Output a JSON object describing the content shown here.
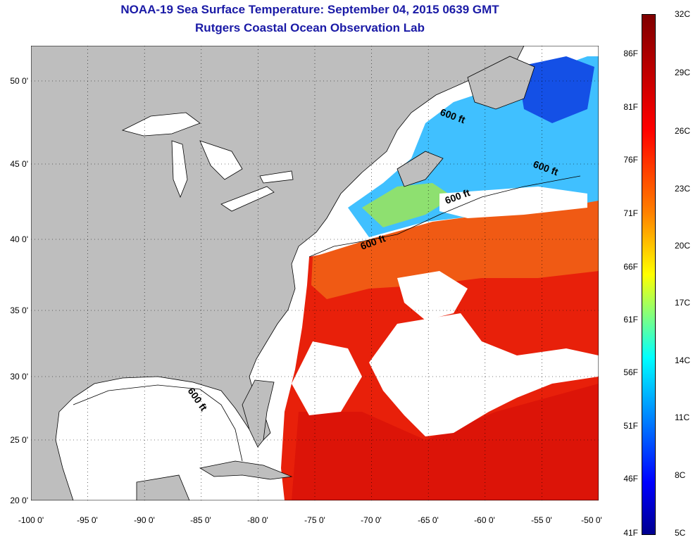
{
  "title": {
    "line1": "NOAA-19 Sea Surface Temperature:  September 04, 2015 0639 GMT",
    "line2": "Rutgers Coastal Ocean Observation Lab"
  },
  "map": {
    "lat_ticks": [
      "50 0'",
      "45 0'",
      "40 0'",
      "35 0'",
      "30 0'",
      "25 0'",
      "20 0'"
    ],
    "lon_ticks": [
      "-100 0'",
      "-95 0'",
      "-90 0'",
      "-85 0'",
      "-80 0'",
      "-75 0'",
      "-70 0'",
      "-65 0'",
      "-60 0'",
      "-55 0'",
      "-50 0'"
    ],
    "isobath_labels": [
      "600 ft",
      "600 ft",
      "600 ft",
      "600 ft",
      "600 ft"
    ],
    "colors": {
      "land": "#bebebe",
      "cloud": "#ffffff",
      "warm": "#e8200a",
      "cool": "#40c0ff"
    }
  },
  "colorbar": {
    "celsius": [
      "32C",
      "29C",
      "26C",
      "23C",
      "20C",
      "17C",
      "14C",
      "11C",
      "8C",
      "5C"
    ],
    "fahrenheit": [
      "86F",
      "81F",
      "76F",
      "71F",
      "66F",
      "61F",
      "56F",
      "51F",
      "46F",
      "41F"
    ]
  }
}
